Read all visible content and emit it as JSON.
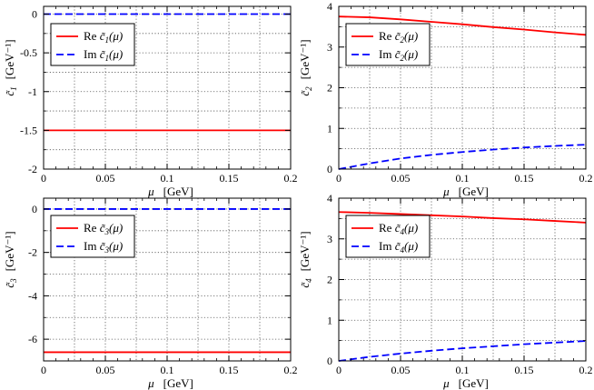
{
  "chart_data": [
    {
      "type": "line",
      "panel": "top-left",
      "xlabel_symbol": "μ",
      "xlabel_unit": "[GeV]",
      "ylabel_symbol": "c̃1",
      "ylabel_unit": "[GeV⁻¹]",
      "xlim": [
        0,
        0.2
      ],
      "ylim": [
        -2,
        0.1
      ],
      "xticks": [
        0,
        0.05,
        0.1,
        0.15,
        0.2
      ],
      "xtick_labels": [
        "0",
        "0.05",
        "0.1",
        "0.15",
        "0.2"
      ],
      "yticks": [
        -2,
        -1.5,
        -1,
        -0.5,
        0
      ],
      "ytick_labels": [
        "-2",
        "-1.5",
        "-1",
        "-0.5",
        "0"
      ],
      "grid": true,
      "legend_position": "upper-left",
      "series": [
        {
          "name": "Re",
          "legend_func": "c̃1(μ)",
          "color": "#ff0000",
          "dash": "solid",
          "x": [
            0,
            0.025,
            0.05,
            0.075,
            0.1,
            0.125,
            0.15,
            0.175,
            0.2
          ],
          "y": [
            -1.5,
            -1.5,
            -1.5,
            -1.5,
            -1.5,
            -1.5,
            -1.5,
            -1.5,
            -1.5
          ]
        },
        {
          "name": "Im",
          "legend_func": "c̃1(μ)",
          "color": "#0000ff",
          "dash": "dashed",
          "x": [
            0,
            0.025,
            0.05,
            0.075,
            0.1,
            0.125,
            0.15,
            0.175,
            0.2
          ],
          "y": [
            0,
            0,
            0,
            0,
            0,
            0,
            0,
            0,
            0
          ]
        }
      ]
    },
    {
      "type": "line",
      "panel": "top-right",
      "xlabel_symbol": "μ",
      "xlabel_unit": "[GeV]",
      "ylabel_symbol": "c̃2",
      "ylabel_unit": "[GeV⁻¹]",
      "xlim": [
        0,
        0.2
      ],
      "ylim": [
        0,
        4
      ],
      "xticks": [
        0,
        0.05,
        0.1,
        0.15,
        0.2
      ],
      "xtick_labels": [
        "0",
        "0.05",
        "0.1",
        "0.15",
        "0.2"
      ],
      "yticks": [
        0,
        1,
        2,
        3,
        4
      ],
      "ytick_labels": [
        "0",
        "1",
        "2",
        "3",
        "4"
      ],
      "grid": true,
      "legend_position": "upper-left",
      "series": [
        {
          "name": "Re",
          "legend_func": "c̃2(μ)",
          "color": "#ff0000",
          "dash": "solid",
          "x": [
            0,
            0.025,
            0.05,
            0.075,
            0.1,
            0.125,
            0.15,
            0.175,
            0.2
          ],
          "y": [
            3.75,
            3.73,
            3.68,
            3.62,
            3.56,
            3.49,
            3.43,
            3.36,
            3.3
          ]
        },
        {
          "name": "Im",
          "legend_func": "c̃2(μ)",
          "color": "#0000ff",
          "dash": "dashed",
          "x": [
            0,
            0.025,
            0.05,
            0.075,
            0.1,
            0.125,
            0.15,
            0.175,
            0.2
          ],
          "y": [
            0,
            0.14,
            0.26,
            0.35,
            0.42,
            0.48,
            0.53,
            0.57,
            0.6
          ]
        }
      ]
    },
    {
      "type": "line",
      "panel": "bottom-left",
      "xlabel_symbol": "μ",
      "xlabel_unit": "[GeV]",
      "ylabel_symbol": "c̃3",
      "ylabel_unit": "[GeV⁻¹]",
      "xlim": [
        0,
        0.2
      ],
      "ylim": [
        -7,
        0.5
      ],
      "xticks": [
        0,
        0.05,
        0.1,
        0.15,
        0.2
      ],
      "xtick_labels": [
        "0",
        "0.05",
        "0.1",
        "0.15",
        "0.2"
      ],
      "yticks": [
        -6,
        -4,
        -2,
        0
      ],
      "ytick_labels": [
        "-6",
        "-4",
        "-2",
        "0"
      ],
      "grid": true,
      "legend_position": "upper-left",
      "series": [
        {
          "name": "Re",
          "legend_func": "c̃3(μ)",
          "color": "#ff0000",
          "dash": "solid",
          "x": [
            0,
            0.025,
            0.05,
            0.075,
            0.1,
            0.125,
            0.15,
            0.175,
            0.2
          ],
          "y": [
            -6.6,
            -6.6,
            -6.6,
            -6.6,
            -6.6,
            -6.6,
            -6.6,
            -6.6,
            -6.6
          ]
        },
        {
          "name": "Im",
          "legend_func": "c̃3(μ)",
          "color": "#0000ff",
          "dash": "dashed",
          "x": [
            0,
            0.025,
            0.05,
            0.075,
            0.1,
            0.125,
            0.15,
            0.175,
            0.2
          ],
          "y": [
            0,
            0,
            0,
            0,
            0,
            0,
            0,
            0,
            0
          ]
        }
      ]
    },
    {
      "type": "line",
      "panel": "bottom-right",
      "xlabel_symbol": "μ",
      "xlabel_unit": "[GeV]",
      "ylabel_symbol": "c̃4",
      "ylabel_unit": "[GeV⁻¹]",
      "xlim": [
        0,
        0.2
      ],
      "ylim": [
        0,
        4
      ],
      "xticks": [
        0,
        0.05,
        0.1,
        0.15,
        0.2
      ],
      "xtick_labels": [
        "0",
        "0.05",
        "0.1",
        "0.15",
        "0.2"
      ],
      "yticks": [
        0,
        1,
        2,
        3,
        4
      ],
      "ytick_labels": [
        "0",
        "1",
        "2",
        "3",
        "4"
      ],
      "grid": true,
      "legend_position": "upper-left",
      "series": [
        {
          "name": "Re",
          "legend_func": "c̃4(μ)",
          "color": "#ff0000",
          "dash": "solid",
          "x": [
            0,
            0.025,
            0.05,
            0.075,
            0.1,
            0.125,
            0.15,
            0.175,
            0.2
          ],
          "y": [
            3.66,
            3.64,
            3.61,
            3.58,
            3.55,
            3.51,
            3.48,
            3.44,
            3.4
          ]
        },
        {
          "name": "Im",
          "legend_func": "c̃4(μ)",
          "color": "#0000ff",
          "dash": "dashed",
          "x": [
            0,
            0.025,
            0.05,
            0.075,
            0.1,
            0.125,
            0.15,
            0.175,
            0.2
          ],
          "y": [
            0,
            0.1,
            0.18,
            0.25,
            0.31,
            0.36,
            0.41,
            0.45,
            0.49
          ]
        }
      ]
    }
  ]
}
